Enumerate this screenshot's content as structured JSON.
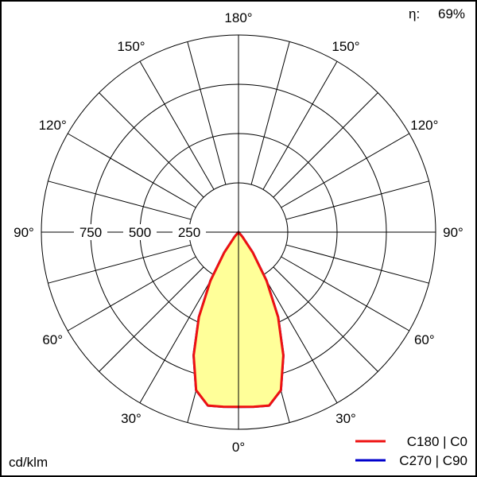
{
  "chart_data": {
    "type": "polar",
    "unit_label": "cd/klm",
    "efficiency_label": "η:",
    "efficiency_value": "69%",
    "radial_ticks": [
      250,
      500,
      750
    ],
    "radial_tick_labels": [
      "250",
      "500",
      "750"
    ],
    "radial_max": 1000,
    "angle_labels": [
      {
        "angle": 0,
        "label": "0°"
      },
      {
        "angle": 30,
        "label": "30°"
      },
      {
        "angle": 60,
        "label": "60°"
      },
      {
        "angle": 90,
        "label": "90°"
      },
      {
        "angle": 120,
        "label": "120°"
      },
      {
        "angle": 150,
        "label": "150°"
      },
      {
        "angle": 180,
        "label": "180°"
      }
    ],
    "spoke_step_deg": 15,
    "angles": [
      0,
      5,
      10,
      15,
      20,
      25,
      30,
      35,
      40,
      45,
      50,
      60,
      90,
      120,
      150,
      180
    ],
    "series": [
      {
        "name": "C270 | C90",
        "color": "#0000cc",
        "values": [
          886,
          889,
          893,
          830,
          665,
          475,
          285,
          125,
          30,
          0,
          0,
          0,
          0,
          0,
          0,
          0
        ]
      },
      {
        "name": "C180 | C0",
        "color": "#ee1111",
        "fill": "#ffff99",
        "values": [
          886,
          889,
          893,
          830,
          665,
          475,
          285,
          125,
          30,
          0,
          0,
          0,
          0,
          0,
          0,
          0
        ]
      }
    ],
    "legend": "bottom-right"
  }
}
